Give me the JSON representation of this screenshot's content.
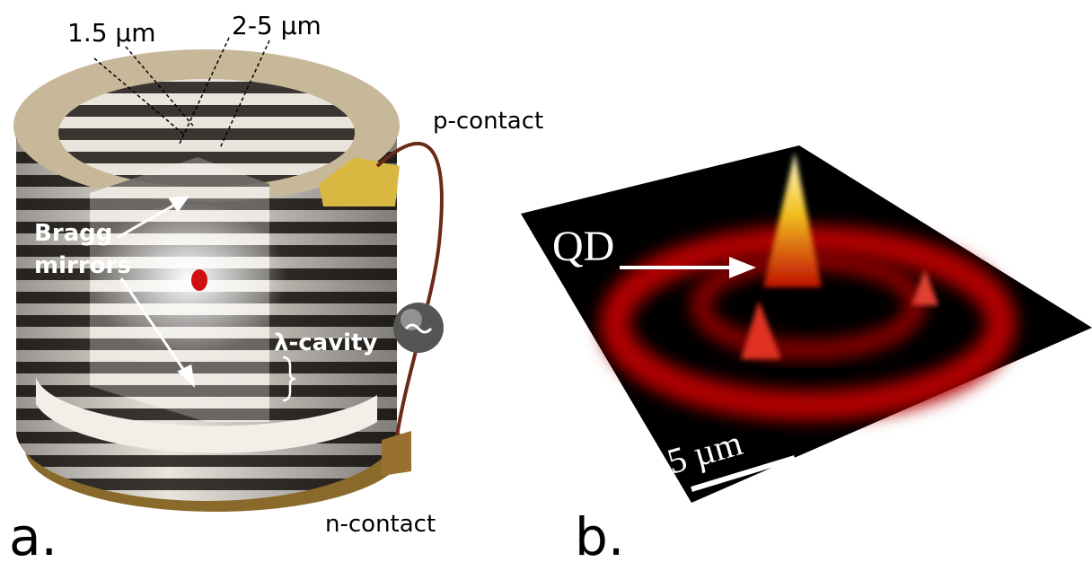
{
  "panel_a": {
    "label": "a.",
    "dimension_left": "1.5 µm",
    "dimension_right": "2-5 µm",
    "top_contact": "p-contact",
    "mirror_label": [
      "Bragg",
      "mirrors"
    ],
    "cavity_label": "λ-cavity",
    "bottom_contact": "n-contact"
  },
  "panel_b": {
    "label": "b.",
    "marker": "QD",
    "scale_bar": "5 µm"
  }
}
